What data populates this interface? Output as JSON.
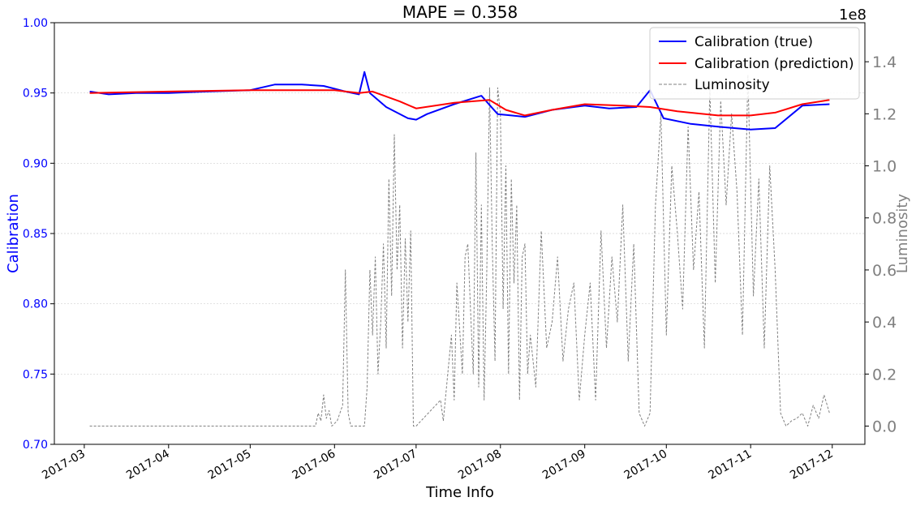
{
  "chart_data": {
    "type": "line",
    "title": "MAPE = 0.358",
    "xlabel": "Time Info",
    "ylabel_left": "Calibration",
    "ylabel_right": "Luminosity",
    "right_axis_multiplier": "1e8",
    "colors": {
      "left_axis": "#0000ff",
      "right_axis": "#808080",
      "true": "#0000ff",
      "prediction": "#ff0000",
      "luminosity": "#808080",
      "grid": "#d0d0d0"
    },
    "grid": true,
    "legend_position": "top-right",
    "ylim_left": [
      0.7,
      1.0
    ],
    "ylim_right": [
      -0.07,
      1.55
    ],
    "xlim": [
      "2017-02-18",
      "2017-12-13"
    ],
    "xticks": [
      "2017-03",
      "2017-04",
      "2017-05",
      "2017-06",
      "2017-07",
      "2017-08",
      "2017-09",
      "2017-10",
      "2017-11",
      "2017-12"
    ],
    "xtick_dates": [
      "2017-03-01",
      "2017-04-01",
      "2017-05-01",
      "2017-06-01",
      "2017-07-01",
      "2017-08-01",
      "2017-09-01",
      "2017-10-01",
      "2017-11-01",
      "2017-12-01"
    ],
    "yticks_left": [
      "0.70",
      "0.75",
      "0.80",
      "0.85",
      "0.90",
      "0.95",
      "1.00"
    ],
    "yticks_right": [
      "0.0",
      "0.2",
      "0.4",
      "0.6",
      "0.8",
      "1.0",
      "1.2",
      "1.4"
    ],
    "series": [
      {
        "name": "Calibration (true)",
        "style": "solid",
        "x": [
          "2017-03-03",
          "2017-03-10",
          "2017-03-20",
          "2017-04-01",
          "2017-04-15",
          "2017-05-01",
          "2017-05-10",
          "2017-05-20",
          "2017-05-28",
          "2017-06-05",
          "2017-06-10",
          "2017-06-12",
          "2017-06-14",
          "2017-06-20",
          "2017-06-28",
          "2017-07-01",
          "2017-07-05",
          "2017-07-15",
          "2017-07-25",
          "2017-07-31",
          "2017-08-05",
          "2017-08-10",
          "2017-08-20",
          "2017-09-01",
          "2017-09-10",
          "2017-09-20",
          "2017-09-25",
          "2017-09-30",
          "2017-10-10",
          "2017-10-20",
          "2017-11-01",
          "2017-11-10",
          "2017-11-20",
          "2017-11-30"
        ],
        "y": [
          0.951,
          0.949,
          0.95,
          0.95,
          0.951,
          0.952,
          0.956,
          0.956,
          0.955,
          0.951,
          0.949,
          0.965,
          0.95,
          0.94,
          0.932,
          0.931,
          0.935,
          0.942,
          0.948,
          0.935,
          0.934,
          0.933,
          0.938,
          0.941,
          0.939,
          0.94,
          0.952,
          0.932,
          0.928,
          0.926,
          0.924,
          0.925,
          0.941,
          0.942
        ]
      },
      {
        "name": "Calibration (prediction)",
        "style": "solid",
        "x": [
          "2017-03-03",
          "2017-04-01",
          "2017-05-01",
          "2017-06-01",
          "2017-06-10",
          "2017-06-15",
          "2017-06-25",
          "2017-07-01",
          "2017-07-15",
          "2017-07-28",
          "2017-08-03",
          "2017-08-10",
          "2017-08-20",
          "2017-09-01",
          "2017-09-15",
          "2017-09-25",
          "2017-10-05",
          "2017-10-20",
          "2017-11-01",
          "2017-11-10",
          "2017-11-20",
          "2017-11-30"
        ],
        "y": [
          0.95,
          0.951,
          0.952,
          0.952,
          0.95,
          0.951,
          0.944,
          0.939,
          0.943,
          0.945,
          0.938,
          0.934,
          0.938,
          0.942,
          0.941,
          0.94,
          0.937,
          0.934,
          0.934,
          0.936,
          0.942,
          0.945
        ]
      },
      {
        "name": "Luminosity",
        "style": "dashed",
        "axis": "right",
        "x": [
          "2017-03-03",
          "2017-05-25",
          "2017-05-26",
          "2017-05-27",
          "2017-05-28",
          "2017-05-29",
          "2017-05-30",
          "2017-05-31",
          "2017-06-02",
          "2017-06-04",
          "2017-06-05",
          "2017-06-06",
          "2017-06-07",
          "2017-06-12",
          "2017-06-13",
          "2017-06-14",
          "2017-06-15",
          "2017-06-16",
          "2017-06-17",
          "2017-06-18",
          "2017-06-19",
          "2017-06-20",
          "2017-06-21",
          "2017-06-22",
          "2017-06-23",
          "2017-06-24",
          "2017-06-25",
          "2017-06-26",
          "2017-06-27",
          "2017-06-28",
          "2017-06-29",
          "2017-06-30",
          "2017-07-01",
          "2017-07-10",
          "2017-07-11",
          "2017-07-14",
          "2017-07-15",
          "2017-07-16",
          "2017-07-18",
          "2017-07-19",
          "2017-07-20",
          "2017-07-21",
          "2017-07-22",
          "2017-07-23",
          "2017-07-24",
          "2017-07-25",
          "2017-07-26",
          "2017-07-27",
          "2017-07-28",
          "2017-07-29",
          "2017-07-30",
          "2017-07-31",
          "2017-08-01",
          "2017-08-02",
          "2017-08-03",
          "2017-08-04",
          "2017-08-05",
          "2017-08-06",
          "2017-08-07",
          "2017-08-08",
          "2017-08-09",
          "2017-08-10",
          "2017-08-11",
          "2017-08-12",
          "2017-08-14",
          "2017-08-16",
          "2017-08-18",
          "2017-08-20",
          "2017-08-22",
          "2017-08-24",
          "2017-08-26",
          "2017-08-28",
          "2017-08-30",
          "2017-09-01",
          "2017-09-03",
          "2017-09-05",
          "2017-09-07",
          "2017-09-09",
          "2017-09-11",
          "2017-09-13",
          "2017-09-15",
          "2017-09-17",
          "2017-09-19",
          "2017-09-21",
          "2017-09-23",
          "2017-09-25",
          "2017-09-27",
          "2017-09-29",
          "2017-10-01",
          "2017-10-03",
          "2017-10-05",
          "2017-10-07",
          "2017-10-09",
          "2017-10-11",
          "2017-10-13",
          "2017-10-15",
          "2017-10-17",
          "2017-10-19",
          "2017-10-21",
          "2017-10-23",
          "2017-10-25",
          "2017-10-27",
          "2017-10-29",
          "2017-10-31",
          "2017-11-02",
          "2017-11-04",
          "2017-11-06",
          "2017-11-08",
          "2017-11-10",
          "2017-11-12",
          "2017-11-14",
          "2017-11-16",
          "2017-11-18",
          "2017-11-20",
          "2017-11-22",
          "2017-11-24",
          "2017-11-26",
          "2017-11-28",
          "2017-11-30"
        ],
        "y": [
          0.0,
          0.0,
          0.05,
          0.02,
          0.12,
          0.03,
          0.06,
          0.0,
          0.02,
          0.08,
          0.6,
          0.05,
          0.0,
          0.0,
          0.15,
          0.6,
          0.35,
          0.65,
          0.2,
          0.4,
          0.7,
          0.3,
          0.95,
          0.5,
          1.12,
          0.6,
          0.85,
          0.3,
          0.72,
          0.4,
          0.75,
          0.0,
          0.0,
          0.1,
          0.02,
          0.35,
          0.1,
          0.55,
          0.2,
          0.65,
          0.7,
          0.45,
          0.2,
          1.05,
          0.15,
          0.85,
          0.1,
          0.6,
          1.3,
          0.7,
          0.25,
          1.3,
          1.2,
          0.45,
          1.0,
          0.2,
          0.95,
          0.55,
          0.85,
          0.1,
          0.65,
          0.7,
          0.2,
          0.35,
          0.15,
          0.75,
          0.3,
          0.4,
          0.65,
          0.25,
          0.45,
          0.55,
          0.1,
          0.35,
          0.55,
          0.1,
          0.75,
          0.3,
          0.65,
          0.4,
          0.85,
          0.25,
          0.7,
          0.05,
          0.0,
          0.05,
          0.85,
          1.2,
          0.35,
          1.0,
          0.75,
          0.45,
          1.15,
          0.6,
          0.9,
          0.3,
          1.3,
          0.55,
          1.25,
          0.85,
          1.2,
          0.9,
          0.35,
          1.35,
          0.5,
          0.95,
          0.3,
          1.0,
          0.6,
          0.05,
          0.0,
          0.02,
          0.03,
          0.05,
          0.0,
          0.08,
          0.03,
          0.12,
          0.05
        ]
      }
    ]
  }
}
